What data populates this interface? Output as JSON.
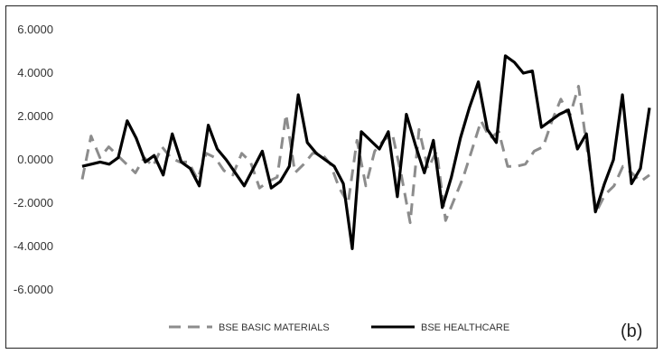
{
  "chart_data": {
    "type": "line",
    "title": "",
    "xlabel": "",
    "ylabel": "",
    "ylim": [
      -6,
      6
    ],
    "y_ticks": [
      "6.0000",
      "4.0000",
      "2.0000",
      "0.0000",
      "-2.0000",
      "-4.0000",
      "-6.0000"
    ],
    "grid": false,
    "legend_position": "bottom",
    "panel_label": "(b)",
    "series": [
      {
        "name": "BSE BASIC MATERIALS",
        "color": "#8c8c8c",
        "dash": "dashed",
        "values": [
          -0.9,
          1.1,
          0.1,
          0.6,
          0.2,
          -0.2,
          -0.6,
          0.1,
          -0.3,
          0.6,
          0.1,
          -0.1,
          -0.1,
          -0.9,
          0.3,
          0.1,
          -0.5,
          -0.7,
          0.3,
          -0.1,
          -1.3,
          -1.0,
          -0.8,
          2.1,
          -0.6,
          -0.2,
          0.3,
          0.3,
          -0.2,
          -1.3,
          -2.0,
          0.9,
          -1.2,
          0.4,
          0.9,
          1.2,
          -0.7,
          -2.9,
          1.4,
          -0.4,
          0.4,
          -2.8,
          -1.8,
          -0.8,
          0.5,
          1.8,
          1.0,
          1.3,
          -0.3,
          -0.3,
          -0.2,
          0.4,
          0.6,
          1.8,
          2.8,
          2.0,
          3.4,
          0.4,
          -2.4,
          -1.6,
          -1.2,
          -0.3,
          -0.6,
          -1.0,
          -0.7
        ]
      },
      {
        "name": "BSE HEALTHCARE",
        "color": "#000000",
        "dash": "solid",
        "values": [
          -0.3,
          -0.2,
          -0.1,
          -0.2,
          0.1,
          1.8,
          1.0,
          -0.1,
          0.2,
          -0.7,
          1.2,
          -0.1,
          -0.4,
          -1.2,
          1.6,
          0.5,
          0.0,
          -0.6,
          -1.2,
          -0.4,
          0.4,
          -1.3,
          -1.0,
          -0.3,
          3.0,
          0.8,
          0.3,
          0.0,
          -0.3,
          -1.1,
          -4.1,
          1.3,
          0.9,
          0.5,
          1.3,
          -1.7,
          2.1,
          0.7,
          -0.6,
          0.9,
          -2.2,
          -0.8,
          1.0,
          2.4,
          3.6,
          1.4,
          0.8,
          4.8,
          4.5,
          4.0,
          4.1,
          1.5,
          1.8,
          2.1,
          2.3,
          0.5,
          1.2,
          -2.4,
          -1.1,
          0.0,
          3.0,
          -1.1,
          -0.4,
          2.4
        ]
      }
    ]
  }
}
